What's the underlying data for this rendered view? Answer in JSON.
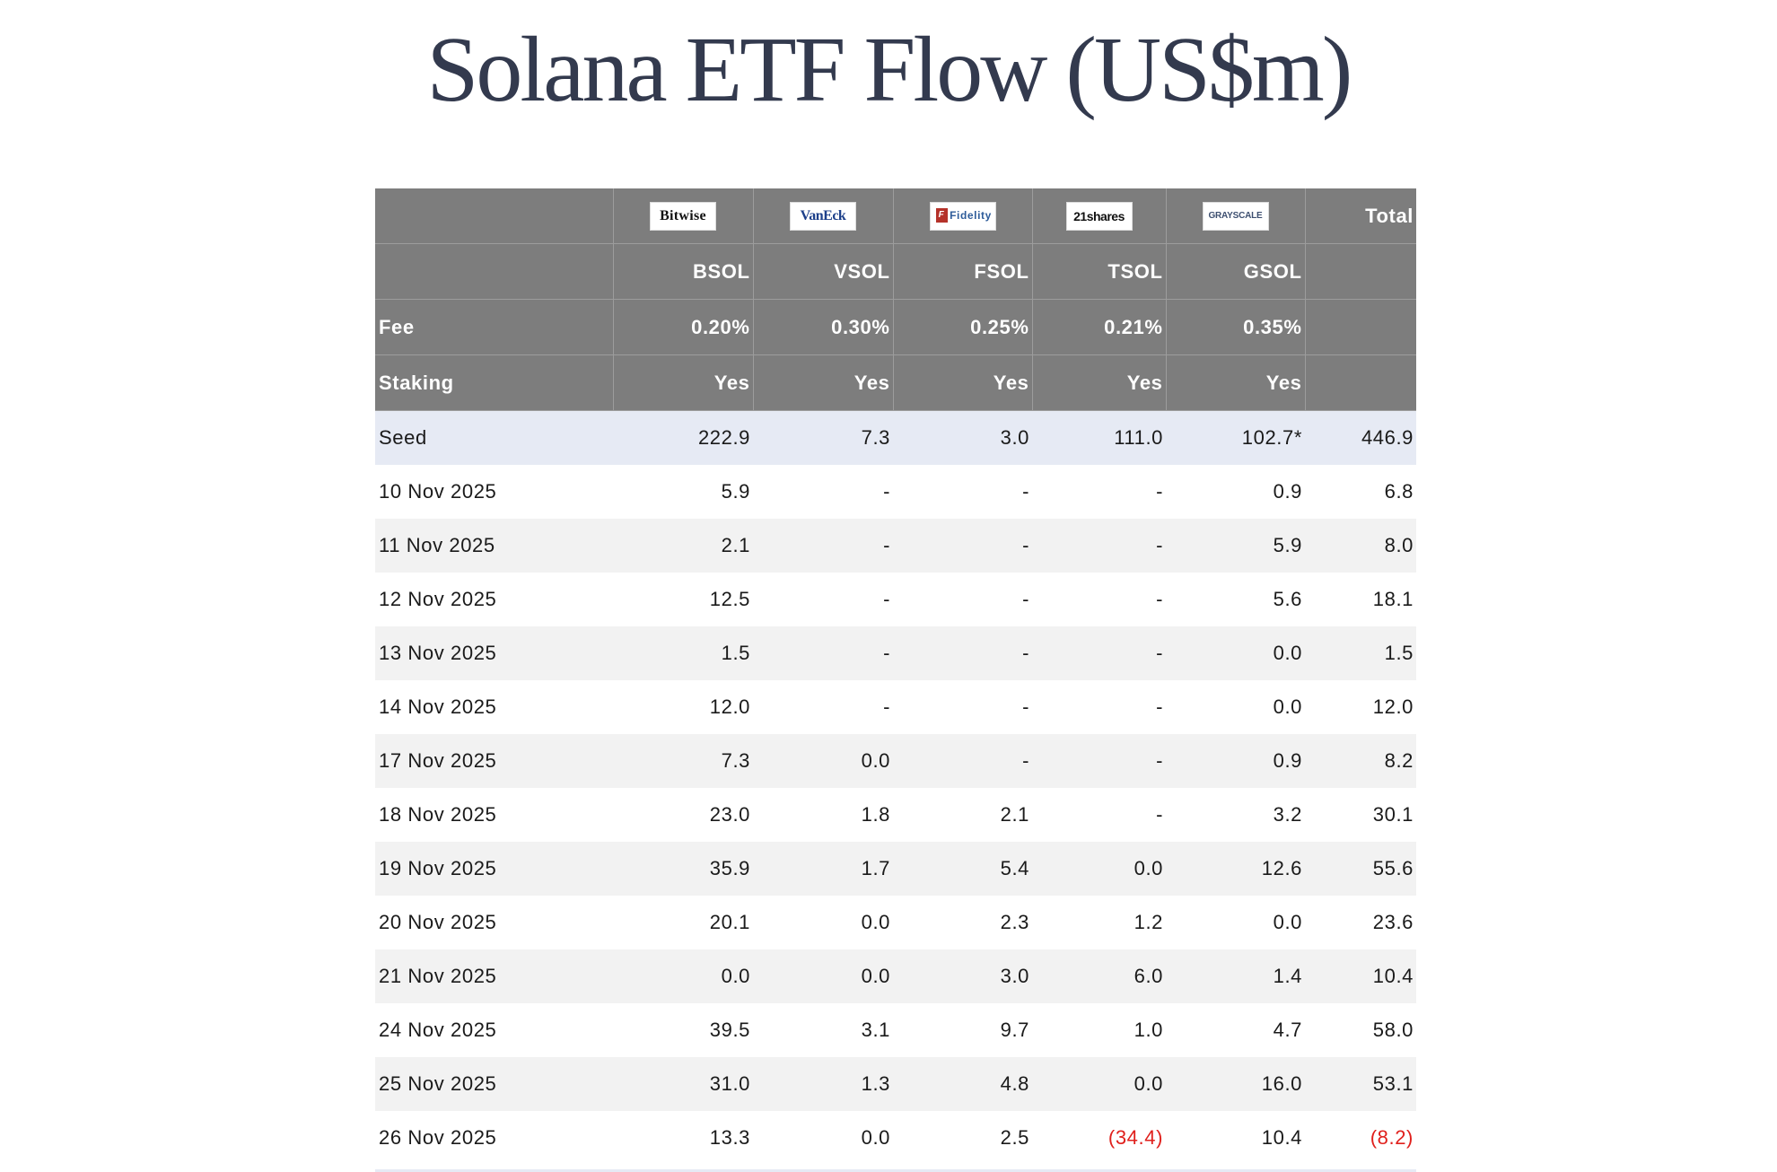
{
  "title": "Solana ETF Flow (US$m)",
  "table": {
    "logos": [
      {
        "issuer": "Bitwise",
        "icon": "bitwise-logo"
      },
      {
        "issuer": "VanEck",
        "icon": "vaneck-logo"
      },
      {
        "issuer": "Fidelity",
        "icon": "fidelity-logo"
      },
      {
        "issuer": "21shares",
        "icon": "21shares-logo"
      },
      {
        "issuer": "GRAYSCALE",
        "icon": "grayscale-logo"
      }
    ],
    "total_header": "Total",
    "tickers": [
      "BSOL",
      "VSOL",
      "FSOL",
      "TSOL",
      "GSOL"
    ],
    "fee_label": "Fee",
    "fees": [
      "0.20%",
      "0.30%",
      "0.25%",
      "0.21%",
      "0.35%"
    ],
    "staking_label": "Staking",
    "staking": [
      "Yes",
      "Yes",
      "Yes",
      "Yes",
      "Yes"
    ],
    "seed": {
      "label": "Seed",
      "values": [
        "222.9",
        "7.3",
        "3.0",
        "111.0",
        "102.7*",
        "446.9"
      ]
    },
    "rows": [
      {
        "date": "10 Nov 2025",
        "values": [
          "5.9",
          "-",
          "-",
          "-",
          "0.9",
          "6.8"
        ]
      },
      {
        "date": "11 Nov 2025",
        "values": [
          "2.1",
          "-",
          "-",
          "-",
          "5.9",
          "8.0"
        ]
      },
      {
        "date": "12 Nov 2025",
        "values": [
          "12.5",
          "-",
          "-",
          "-",
          "5.6",
          "18.1"
        ]
      },
      {
        "date": "13 Nov 2025",
        "values": [
          "1.5",
          "-",
          "-",
          "-",
          "0.0",
          "1.5"
        ]
      },
      {
        "date": "14 Nov 2025",
        "values": [
          "12.0",
          "-",
          "-",
          "-",
          "0.0",
          "12.0"
        ]
      },
      {
        "date": "17 Nov 2025",
        "values": [
          "7.3",
          "0.0",
          "-",
          "-",
          "0.9",
          "8.2"
        ]
      },
      {
        "date": "18 Nov 2025",
        "values": [
          "23.0",
          "1.8",
          "2.1",
          "-",
          "3.2",
          "30.1"
        ]
      },
      {
        "date": "19 Nov 2025",
        "values": [
          "35.9",
          "1.7",
          "5.4",
          "0.0",
          "12.6",
          "55.6"
        ]
      },
      {
        "date": "20 Nov 2025",
        "values": [
          "20.1",
          "0.0",
          "2.3",
          "1.2",
          "0.0",
          "23.6"
        ]
      },
      {
        "date": "21 Nov 2025",
        "values": [
          "0.0",
          "0.0",
          "3.0",
          "6.0",
          "1.4",
          "10.4"
        ]
      },
      {
        "date": "24 Nov 2025",
        "values": [
          "39.5",
          "3.1",
          "9.7",
          "1.0",
          "4.7",
          "58.0"
        ]
      },
      {
        "date": "25 Nov 2025",
        "values": [
          "31.0",
          "1.3",
          "4.8",
          "0.0",
          "16.0",
          "53.1"
        ]
      },
      {
        "date": "26 Nov 2025",
        "values": [
          "13.3",
          "0.0",
          "2.5",
          "(34.4)",
          "10.4",
          "(8.2)"
        ]
      }
    ],
    "colors": {
      "header_bg": "#7d7d7d",
      "seed_bg": "#e6eaf4",
      "stripe_bg": "#f2f2f2",
      "negative": "#e0201c",
      "title": "#333a4e"
    }
  }
}
